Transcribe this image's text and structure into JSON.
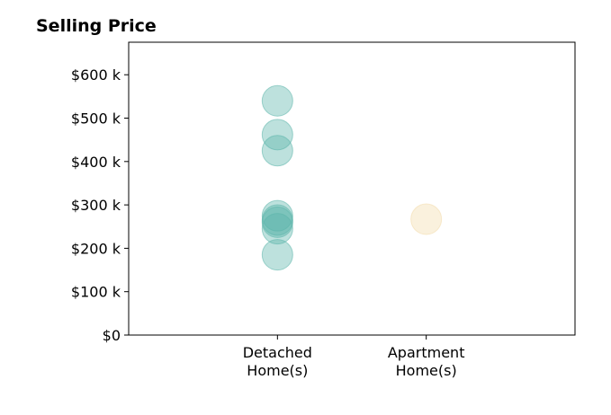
{
  "chart_data": {
    "type": "scatter",
    "title": "Selling Price",
    "xlabel": "",
    "ylabel": "",
    "categories": [
      "Detached\nHome(s)",
      "Apartment\nHome(s)"
    ],
    "xlim": [
      0,
      3
    ],
    "ylim": [
      0,
      675
    ],
    "y_ticks": [
      {
        "value": 0,
        "label": "$0"
      },
      {
        "value": 100,
        "label": "$100 k"
      },
      {
        "value": 200,
        "label": "$200 k"
      },
      {
        "value": 300,
        "label": "$300 k"
      },
      {
        "value": 400,
        "label": "$400 k"
      },
      {
        "value": 500,
        "label": "$500 k"
      },
      {
        "value": 600,
        "label": "$600 k"
      }
    ],
    "grid": false,
    "series": [
      {
        "category_index": 0,
        "color": "#5bb5aa",
        "values": [
          540,
          462,
          425,
          275,
          265,
          260,
          245,
          185
        ]
      },
      {
        "category_index": 1,
        "color": "#f3dba9",
        "values": [
          267
        ]
      }
    ]
  }
}
